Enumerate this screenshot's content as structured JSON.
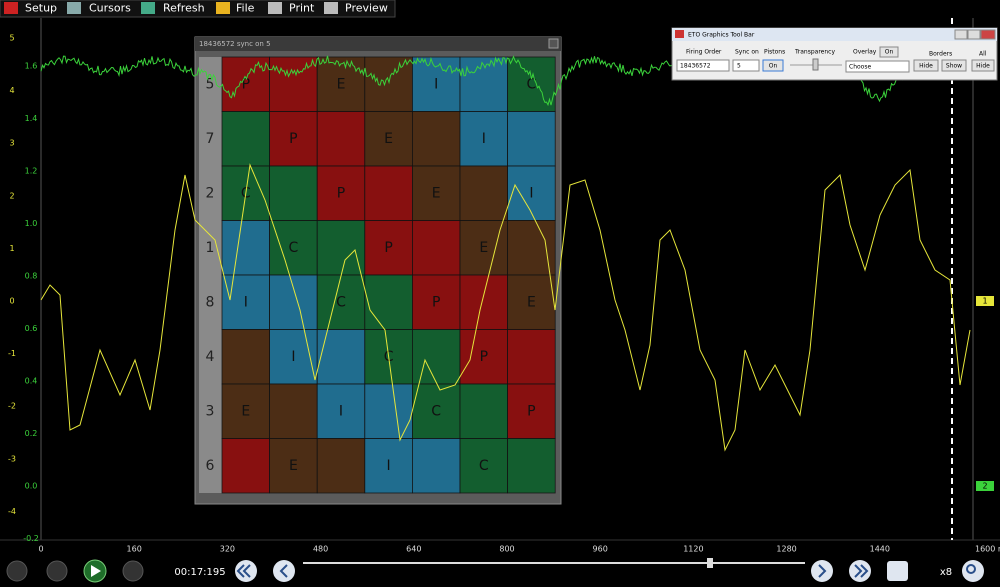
{
  "menu": [
    "Setup",
    "Cursors",
    "Refresh",
    "File",
    "Print",
    "Preview"
  ],
  "y_axis_1": {
    "color": "#e6e63a",
    "ticks": [
      5,
      4,
      3,
      2,
      1,
      0,
      -1,
      -2,
      -3,
      -4
    ]
  },
  "y_axis_2": {
    "color": "#3bd23b",
    "ticks": [
      1.6,
      1.4,
      1.2,
      {
        "value": 1.0,
        "label": "1.0"
      },
      0.8,
      0.6,
      0.4,
      0.2,
      {
        "value": 0,
        "label": "0.0"
      },
      -0.2
    ]
  },
  "x_axis": {
    "ticks": [
      0,
      160,
      320,
      480,
      640,
      800,
      960,
      1120,
      1280,
      1440,
      {
        "value": 1600,
        "label": "1600 ms"
      }
    ]
  },
  "channel_markers": [
    "1",
    "2"
  ],
  "overlay": {
    "title": "18436572 sync on 5",
    "cylinders": [
      5,
      7,
      2,
      1,
      8,
      4,
      3,
      6
    ],
    "rows": [
      [
        {
          "fill": "#8c0a0a",
          "label": "P"
        },
        {
          "fill": "#8c0a0a"
        },
        {
          "fill": "#4b2a10",
          "label": "E"
        },
        {
          "fill": "#4b2a10"
        },
        {
          "fill": "#1b6f94",
          "label": "I"
        },
        {
          "fill": "#1b6f94"
        },
        {
          "fill": "#0d5f2c",
          "label": "C"
        }
      ],
      [
        {
          "fill": "#0d5f2c"
        },
        {
          "fill": "#8c0a0a",
          "label": "P"
        },
        {
          "fill": "#8c0a0a"
        },
        {
          "fill": "#4b2a10",
          "label": "E"
        },
        {
          "fill": "#4b2a10"
        },
        {
          "fill": "#1b6f94",
          "label": "I"
        },
        {
          "fill": "#1b6f94"
        }
      ],
      [
        {
          "fill": "#0d5f2c",
          "label": "C"
        },
        {
          "fill": "#0d5f2c"
        },
        {
          "fill": "#8c0a0a",
          "label": "P"
        },
        {
          "fill": "#8c0a0a"
        },
        {
          "fill": "#4b2a10",
          "label": "E"
        },
        {
          "fill": "#4b2a10"
        },
        {
          "fill": "#1b6f94",
          "label": "I"
        }
      ],
      [
        {
          "fill": "#1b6f94"
        },
        {
          "fill": "#0d5f2c",
          "label": "C"
        },
        {
          "fill": "#0d5f2c"
        },
        {
          "fill": "#8c0a0a",
          "label": "P"
        },
        {
          "fill": "#8c0a0a"
        },
        {
          "fill": "#4b2a10",
          "label": "E"
        },
        {
          "fill": "#4b2a10"
        }
      ],
      [
        {
          "fill": "#1b6f94",
          "label": "I"
        },
        {
          "fill": "#1b6f94"
        },
        {
          "fill": "#0d5f2c",
          "label": "C"
        },
        {
          "fill": "#0d5f2c"
        },
        {
          "fill": "#8c0a0a",
          "label": "P"
        },
        {
          "fill": "#8c0a0a"
        },
        {
          "fill": "#4b2a10",
          "label": "E"
        }
      ],
      [
        {
          "fill": "#4b2a10"
        },
        {
          "fill": "#1b6f94",
          "label": "I"
        },
        {
          "fill": "#1b6f94"
        },
        {
          "fill": "#0d5f2c",
          "label": "C"
        },
        {
          "fill": "#0d5f2c"
        },
        {
          "fill": "#8c0a0a",
          "label": "P"
        },
        {
          "fill": "#8c0a0a"
        }
      ],
      [
        {
          "fill": "#4b2a10",
          "label": "E"
        },
        {
          "fill": "#4b2a10"
        },
        {
          "fill": "#1b6f94",
          "label": "I"
        },
        {
          "fill": "#1b6f94"
        },
        {
          "fill": "#0d5f2c",
          "label": "C"
        },
        {
          "fill": "#0d5f2c"
        },
        {
          "fill": "#8c0a0a",
          "label": "P"
        }
      ],
      [
        {
          "fill": "#8c0a0a"
        },
        {
          "fill": "#4b2a10",
          "label": "E"
        },
        {
          "fill": "#4b2a10"
        },
        {
          "fill": "#1b6f94",
          "label": "I"
        },
        {
          "fill": "#1b6f94"
        },
        {
          "fill": "#0d5f2c",
          "label": "C"
        },
        {
          "fill": "#0d5f2c"
        }
      ]
    ]
  },
  "tool_window": {
    "title": "ETO Graphics Tool Bar",
    "firing_order": "Firing Order",
    "sync_on": "Sync on",
    "pistons": "Pistons",
    "transparency": "Transparency",
    "overlay": "Overlay",
    "overlay_button": "On",
    "borders": "Borders",
    "all": "All",
    "firing_order_value": "18436572",
    "sync_value": "5",
    "pistons_button": "On",
    "overlay_select": "Choose",
    "borders_hide": "Hide",
    "borders_show": "Show",
    "all_hide": "Hide"
  },
  "playback": {
    "time": "00:17:195",
    "zoom": "x8"
  }
}
